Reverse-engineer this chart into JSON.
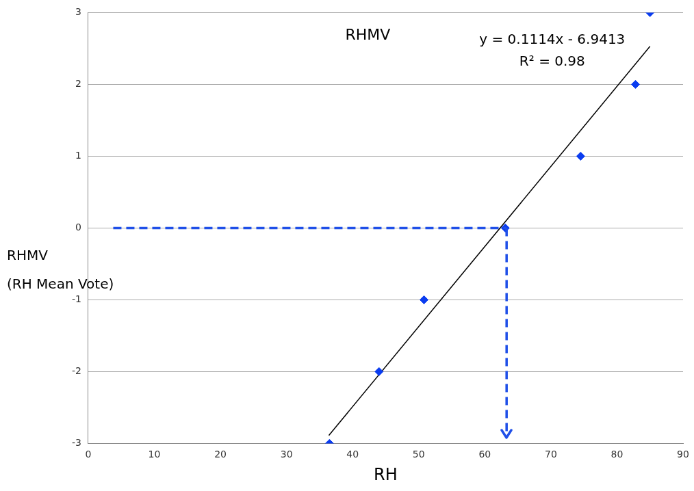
{
  "chart_data": {
    "type": "scatter",
    "xlabel": "RH",
    "ylabel": "RHMV\n(RH Mean Vote)",
    "xlim": [
      0,
      90
    ],
    "xticks": [
      0,
      10,
      20,
      30,
      40,
      50,
      60,
      70,
      80,
      90
    ],
    "ylim": [
      -3,
      3
    ],
    "yticks": [
      -3,
      -2,
      -1,
      0,
      1,
      2,
      3
    ],
    "grid": "y",
    "legend": false,
    "marker": "diamond",
    "series": [
      {
        "color": "#0a3cf0",
        "x": [
          36.5,
          44,
          50.8,
          63.1,
          74.5,
          82.8,
          85
        ],
        "values": [
          -3,
          -2,
          -1,
          0,
          1,
          2,
          3
        ]
      },
      {
        "type": "line",
        "color": "#000000",
        "marker": "none",
        "line_style": "solid",
        "x": [
          36.4,
          85
        ],
        "values": [
          -2.89,
          2.53
        ]
      }
    ],
    "ref_lines": [
      {
        "axis": "y",
        "value": 0,
        "color": "#1f4fe8",
        "line_style": "dashed"
      },
      {
        "axis": "x",
        "value": 63.3,
        "color": "#1f4fe8",
        "line_style": "dashed"
      }
    ],
    "annotations": [
      "RHMV",
      "y = 0.1114x - 6.9413",
      "R² = 0.98"
    ]
  }
}
